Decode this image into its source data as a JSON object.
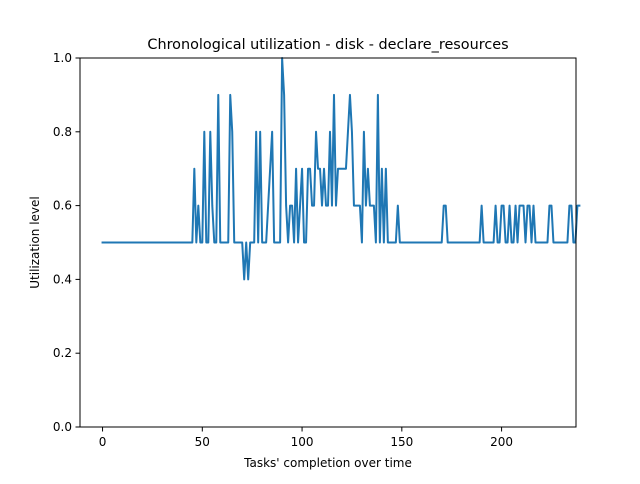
{
  "chart_data": {
    "type": "line",
    "title": "Chronological utilization - disk - declare_resources",
    "xlabel": "Tasks' completion over time",
    "ylabel": "Utilization level",
    "xlim": [
      -11.3,
      237.3
    ],
    "ylim": [
      0.0,
      1.0
    ],
    "x_ticks": [
      0,
      50,
      100,
      150,
      200
    ],
    "y_ticks": [
      0.0,
      0.2,
      0.4,
      0.6,
      0.8,
      1.0
    ],
    "x_tick_labels": [
      "0",
      "50",
      "100",
      "150",
      "200"
    ],
    "y_tick_labels": [
      "0.0",
      "0.2",
      "0.4",
      "0.6",
      "0.8",
      "1.0"
    ],
    "grid": false,
    "colors": {
      "line": "#1f77b4",
      "axes": "#000000",
      "background": "#ffffff"
    },
    "series": [
      {
        "values": [
          0.5,
          0.5,
          0.5,
          0.5,
          0.5,
          0.5,
          0.5,
          0.5,
          0.5,
          0.5,
          0.5,
          0.5,
          0.5,
          0.5,
          0.5,
          0.5,
          0.5,
          0.5,
          0.5,
          0.5,
          0.5,
          0.5,
          0.5,
          0.5,
          0.5,
          0.5,
          0.5,
          0.5,
          0.5,
          0.5,
          0.5,
          0.5,
          0.5,
          0.5,
          0.5,
          0.5,
          0.5,
          0.5,
          0.5,
          0.5,
          0.5,
          0.5,
          0.5,
          0.5,
          0.5,
          0.5,
          0.7,
          0.5,
          0.6,
          0.5,
          0.5,
          0.8,
          0.5,
          0.5,
          0.8,
          0.6,
          0.5,
          0.5,
          0.9,
          0.5,
          0.5,
          0.5,
          0.5,
          0.5,
          0.9,
          0.8,
          0.5,
          0.5,
          0.5,
          0.5,
          0.5,
          0.4,
          0.5,
          0.4,
          0.5,
          0.5,
          0.5,
          0.8,
          0.5,
          0.8,
          0.5,
          0.5,
          0.5,
          0.6,
          0.7,
          0.8,
          0.5,
          0.5,
          0.5,
          0.5,
          1.0,
          0.9,
          0.6,
          0.5,
          0.6,
          0.6,
          0.5,
          0.7,
          0.5,
          0.6,
          0.7,
          0.5,
          0.5,
          0.7,
          0.7,
          0.6,
          0.6,
          0.8,
          0.7,
          0.7,
          0.6,
          0.7,
          0.6,
          0.6,
          0.8,
          0.6,
          0.9,
          0.6,
          0.7,
          0.7,
          0.7,
          0.7,
          0.7,
          0.8,
          0.9,
          0.8,
          0.6,
          0.6,
          0.6,
          0.6,
          0.5,
          0.8,
          0.6,
          0.7,
          0.6,
          0.6,
          0.6,
          0.5,
          0.9,
          0.5,
          0.7,
          0.5,
          0.7,
          0.5,
          0.5,
          0.5,
          0.5,
          0.5,
          0.6,
          0.5,
          0.5,
          0.5,
          0.5,
          0.5,
          0.5,
          0.5,
          0.5,
          0.5,
          0.5,
          0.5,
          0.5,
          0.5,
          0.5,
          0.5,
          0.5,
          0.5,
          0.5,
          0.5,
          0.5,
          0.5,
          0.5,
          0.6,
          0.6,
          0.5,
          0.5,
          0.5,
          0.5,
          0.5,
          0.5,
          0.5,
          0.5,
          0.5,
          0.5,
          0.5,
          0.5,
          0.5,
          0.5,
          0.5,
          0.5,
          0.5,
          0.6,
          0.5,
          0.5,
          0.5,
          0.5,
          0.5,
          0.5,
          0.6,
          0.5,
          0.5,
          0.6,
          0.6,
          0.5,
          0.5,
          0.6,
          0.5,
          0.5,
          0.6,
          0.5,
          0.6,
          0.6,
          0.6,
          0.5,
          0.6,
          0.6,
          0.5,
          0.6,
          0.5,
          0.5,
          0.5,
          0.5,
          0.5,
          0.5,
          0.5,
          0.6,
          0.6,
          0.5,
          0.5,
          0.5,
          0.5,
          0.5,
          0.5,
          0.5,
          0.5,
          0.6,
          0.6,
          0.5,
          0.5,
          0.6,
          0.6
        ]
      }
    ]
  }
}
